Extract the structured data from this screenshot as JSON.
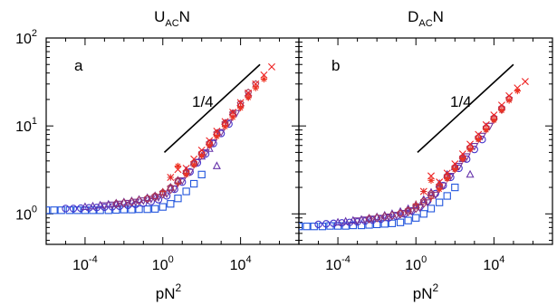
{
  "chart_data": [
    {
      "type": "scatter",
      "panel_letter": "a",
      "title_main": "U",
      "title_sub": "AC",
      "title_tail": "N",
      "xlabel_main": "pN",
      "xlabel_sup": "2",
      "x_scale": "log",
      "y_scale": "log",
      "xlim": [
        1e-06,
        10000000
      ],
      "ylim": [
        0.45,
        100
      ],
      "x_ticks": [
        {
          "value": 0.0001,
          "base": "10",
          "exp": "-4"
        },
        {
          "value": 1,
          "base": "10",
          "exp": "0"
        },
        {
          "value": 10000,
          "base": "10",
          "exp": "4"
        }
      ],
      "y_ticks": [
        {
          "value": 1,
          "base": "10",
          "exp": "0"
        },
        {
          "value": 10,
          "base": "10",
          "exp": "1"
        },
        {
          "value": 100,
          "base": "10",
          "exp": "2"
        }
      ],
      "guide_line": {
        "label": "1/4",
        "x": [
          1.2,
          100000
        ],
        "y": [
          5,
          50
        ]
      },
      "grid": false,
      "series": [
        {
          "marker": "square",
          "color": "#2255dd",
          "x": [
            1e-06,
            2.5e-06,
            6e-06,
            1.6e-05,
            4e-05,
            0.0001,
            0.00025,
            0.0006,
            0.0016,
            0.004,
            0.01,
            0.025,
            0.06,
            0.16,
            0.4,
            1,
            2.5,
            6,
            16,
            40,
            100
          ],
          "y": [
            1.1,
            1.1,
            1.1,
            1.1,
            1.1,
            1.1,
            1.1,
            1.1,
            1.1,
            1.11,
            1.12,
            1.12,
            1.13,
            1.13,
            1.14,
            1.2,
            1.3,
            1.5,
            1.8,
            2.2,
            2.8
          ]
        },
        {
          "marker": "circle",
          "color": "#4433cc",
          "x": [
            1e-05,
            2.5e-05,
            6e-05,
            0.00016,
            0.0004,
            0.001,
            0.0025,
            0.006,
            0.016,
            0.04,
            0.1,
            0.25,
            0.6,
            1.6,
            4,
            10,
            25,
            60,
            160,
            400,
            1000,
            2500
          ],
          "y": [
            1.15,
            1.15,
            1.16,
            1.17,
            1.18,
            1.19,
            1.2,
            1.22,
            1.25,
            1.28,
            1.32,
            1.38,
            1.45,
            1.6,
            1.9,
            2.3,
            3,
            3.8,
            4.8,
            6.3,
            8.2,
            10.5
          ]
        },
        {
          "marker": "triangle-up",
          "color": "#6633aa",
          "x": [
            0.0001,
            0.00025,
            0.0006,
            0.0016,
            0.004,
            0.01,
            0.025,
            0.06,
            0.16,
            0.4,
            1,
            2.5,
            6,
            16,
            40,
            100,
            250,
            600
          ],
          "y": [
            1.2,
            1.22,
            1.25,
            1.28,
            1.32,
            1.36,
            1.4,
            1.45,
            1.52,
            1.6,
            1.75,
            2,
            2.4,
            3.1,
            3.8,
            4.5,
            5.5,
            3.5
          ]
        },
        {
          "marker": "triangle-down",
          "color": "#773399",
          "x": [
            0.001,
            0.0025,
            0.006,
            0.016,
            0.04,
            0.1,
            0.25,
            0.6,
            1.6,
            4,
            10,
            25,
            60,
            160,
            400,
            1000,
            2500,
            6000
          ],
          "y": [
            1.25,
            1.27,
            1.3,
            1.33,
            1.37,
            1.42,
            1.48,
            1.55,
            1.7,
            1.95,
            2.4,
            3,
            3.9,
            5,
            6.5,
            8.5,
            11,
            14
          ]
        },
        {
          "marker": "diamond",
          "color": "#993366",
          "x": [
            0.004,
            0.01,
            0.025,
            0.06,
            0.16,
            0.4,
            1,
            2.5,
            6,
            16,
            40,
            100,
            250,
            600,
            1600,
            4000,
            10000,
            25000
          ],
          "y": [
            1.3,
            1.33,
            1.37,
            1.42,
            1.48,
            1.55,
            1.68,
            1.9,
            2.3,
            2.9,
            3.7,
            4.8,
            6.2,
            8,
            10.5,
            13.5,
            17,
            22
          ]
        },
        {
          "marker": "pentagon",
          "color": "#aa3355",
          "x": [
            0.16,
            0.4,
            1,
            2.5,
            6,
            16,
            40,
            100,
            250,
            600,
            1600,
            4000,
            10000,
            25000,
            60000
          ],
          "y": [
            1.5,
            1.6,
            1.75,
            2,
            2.4,
            3,
            3.8,
            4.9,
            6.4,
            8.3,
            10.8,
            14,
            18,
            24,
            30
          ]
        },
        {
          "marker": "plus",
          "color": "#cc3333",
          "x": [
            1,
            2.5,
            6,
            16,
            40,
            100,
            250,
            600,
            1600,
            4000,
            10000,
            25000
          ],
          "y": [
            1.8,
            2.6,
            2.2,
            2.9,
            3.6,
            4.6,
            6,
            7.8,
            10,
            13,
            16.5,
            21
          ]
        },
        {
          "marker": "x",
          "color": "#ee2222",
          "x": [
            2.5,
            6,
            16,
            40,
            100,
            250,
            600,
            1600,
            4000,
            10000,
            25000,
            60000,
            160000,
            400000
          ],
          "y": [
            2.6,
            3.2,
            3.3,
            4.2,
            5.3,
            6.8,
            8.7,
            11.2,
            14.3,
            18.4,
            23.6,
            30,
            38,
            47
          ]
        },
        {
          "marker": "asterisk",
          "color": "#ee3322",
          "x": [
            6,
            16,
            40,
            100,
            250,
            600,
            1600,
            4000,
            10000,
            25000,
            60000,
            160000
          ],
          "y": [
            3.5,
            2.8,
            3.6,
            4.6,
            6,
            7.6,
            9.8,
            12.5,
            16,
            21,
            27,
            34
          ]
        }
      ]
    },
    {
      "type": "scatter",
      "panel_letter": "b",
      "title_main": "D",
      "title_sub": "AC",
      "title_tail": "N",
      "xlabel_main": "pN",
      "xlabel_sup": "2",
      "x_scale": "log",
      "y_scale": "log",
      "xlim": [
        1e-06,
        10000000
      ],
      "ylim": [
        0.45,
        100
      ],
      "x_ticks": [
        {
          "value": 0.0001,
          "base": "10",
          "exp": "-4"
        },
        {
          "value": 1,
          "base": "10",
          "exp": "0"
        },
        {
          "value": 10000,
          "base": "10",
          "exp": "4"
        }
      ],
      "y_ticks": [
        {
          "value": 1
        },
        {
          "value": 10
        },
        {
          "value": 100
        }
      ],
      "guide_line": {
        "label": "1/4",
        "x": [
          1.2,
          100000
        ],
        "y": [
          5,
          50
        ]
      },
      "grid": false,
      "series": [
        {
          "marker": "square",
          "color": "#2255dd",
          "x": [
            1e-06,
            2.5e-06,
            6e-06,
            1.6e-05,
            4e-05,
            0.0001,
            0.00025,
            0.0006,
            0.0016,
            0.004,
            0.01,
            0.025,
            0.06,
            0.16,
            0.4,
            1,
            2.5,
            6,
            16,
            40,
            100
          ],
          "y": [
            0.72,
            0.72,
            0.72,
            0.72,
            0.73,
            0.73,
            0.73,
            0.74,
            0.74,
            0.75,
            0.76,
            0.77,
            0.78,
            0.8,
            0.84,
            0.9,
            1,
            1.15,
            1.35,
            1.6,
            2
          ]
        },
        {
          "marker": "circle",
          "color": "#4433cc",
          "x": [
            1e-05,
            2.5e-05,
            6e-05,
            0.00016,
            0.0004,
            0.001,
            0.0025,
            0.006,
            0.016,
            0.04,
            0.1,
            0.25,
            0.6,
            1.6,
            4,
            10,
            25,
            60,
            160,
            400,
            1000,
            2500
          ],
          "y": [
            0.76,
            0.77,
            0.78,
            0.79,
            0.8,
            0.81,
            0.83,
            0.85,
            0.87,
            0.9,
            0.94,
            1,
            1.08,
            1.2,
            1.4,
            1.7,
            2.1,
            2.6,
            3.3,
            4.2,
            5.4,
            7
          ]
        },
        {
          "marker": "triangle-up",
          "color": "#6633aa",
          "x": [
            0.0001,
            0.00025,
            0.0006,
            0.0016,
            0.004,
            0.01,
            0.025,
            0.06,
            0.16,
            0.4,
            1,
            2.5,
            6,
            16,
            40,
            100,
            250,
            600
          ],
          "y": [
            0.8,
            0.82,
            0.84,
            0.86,
            0.89,
            0.92,
            0.96,
            1,
            1.06,
            1.14,
            1.26,
            1.45,
            1.75,
            2.2,
            2.8,
            3.4,
            4.2,
            2.8
          ]
        },
        {
          "marker": "triangle-down",
          "color": "#773399",
          "x": [
            0.001,
            0.0025,
            0.006,
            0.016,
            0.04,
            0.1,
            0.25,
            0.6,
            1.6,
            4,
            10,
            25,
            60,
            160,
            400,
            1000,
            2500,
            6000
          ],
          "y": [
            0.84,
            0.86,
            0.88,
            0.9,
            0.93,
            0.97,
            1.02,
            1.08,
            1.18,
            1.35,
            1.65,
            2.1,
            2.7,
            3.5,
            4.5,
            5.9,
            7.7,
            10
          ]
        },
        {
          "marker": "diamond",
          "color": "#993366",
          "x": [
            0.004,
            0.01,
            0.025,
            0.06,
            0.16,
            0.4,
            1,
            2.5,
            6,
            16,
            40,
            100,
            250,
            600,
            1600,
            4000,
            10000,
            25000
          ],
          "y": [
            0.88,
            0.9,
            0.93,
            0.96,
            1,
            1.06,
            1.16,
            1.32,
            1.6,
            2,
            2.6,
            3.3,
            4.3,
            5.6,
            7.3,
            9.4,
            12,
            15.5
          ]
        },
        {
          "marker": "pentagon",
          "color": "#aa3355",
          "x": [
            0.16,
            0.4,
            1,
            2.5,
            6,
            16,
            40,
            100,
            250,
            600,
            1600,
            4000,
            10000,
            25000,
            60000
          ],
          "y": [
            1.02,
            1.1,
            1.22,
            1.4,
            1.7,
            2.1,
            2.7,
            3.4,
            4.4,
            5.7,
            7.4,
            9.6,
            12.4,
            16,
            20.5
          ]
        },
        {
          "marker": "plus",
          "color": "#cc3333",
          "x": [
            1,
            2.5,
            6,
            16,
            40,
            100,
            250,
            600,
            1600,
            4000,
            10000,
            25000
          ],
          "y": [
            1.3,
            1.8,
            1.5,
            2.1,
            2.6,
            3.3,
            4.3,
            5.5,
            7.1,
            9.2,
            11.8,
            15.2
          ]
        },
        {
          "marker": "x",
          "color": "#ee2222",
          "x": [
            2.5,
            6,
            16,
            40,
            100,
            250,
            600,
            1600,
            4000,
            10000,
            25000,
            60000,
            160000,
            400000
          ],
          "y": [
            1.8,
            2.7,
            2.3,
            2.9,
            3.7,
            4.8,
            6.2,
            8,
            10.3,
            13.3,
            17.2,
            22,
            27,
            32
          ]
        },
        {
          "marker": "asterisk",
          "color": "#ee3322",
          "x": [
            6,
            16,
            40,
            100,
            250,
            600,
            1600,
            4000,
            10000,
            25000,
            60000,
            160000
          ],
          "y": [
            2.4,
            1.9,
            2.5,
            3.2,
            4.2,
            5.4,
            7,
            9,
            11.6,
            15,
            19.5,
            25
          ]
        }
      ]
    }
  ]
}
